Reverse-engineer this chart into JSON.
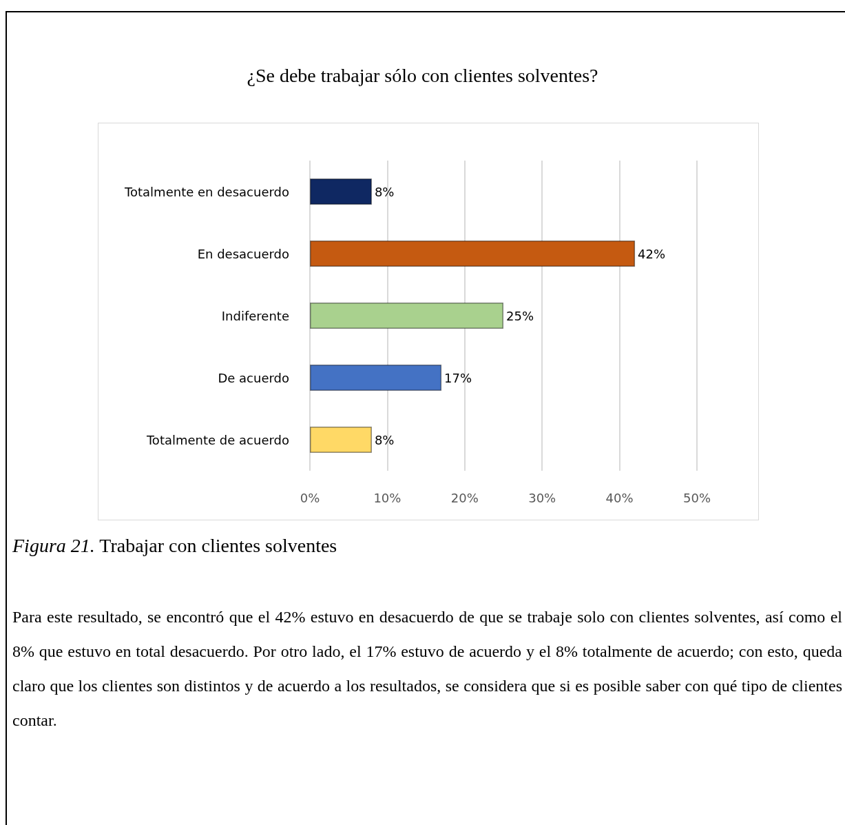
{
  "chart_data": {
    "type": "bar",
    "orientation": "horizontal",
    "title": "¿Se debe trabajar sólo con clientes solventes?",
    "categories": [
      "Totalmente en desacuerdo",
      "En desacuerdo",
      "Indiferente",
      "De acuerdo",
      "Totalmente de acuerdo"
    ],
    "values": [
      8,
      42,
      25,
      17,
      8
    ],
    "colors": [
      "#0f2862",
      "#c55a11",
      "#a9d18e",
      "#4472c4",
      "#ffd966"
    ],
    "value_labels": [
      "8%",
      "42%",
      "25%",
      "17%",
      "8%"
    ],
    "xlim": [
      0,
      50
    ],
    "xticks": [
      {
        "value": 0,
        "label": "0%"
      },
      {
        "value": 10,
        "label": "10%"
      },
      {
        "value": 20,
        "label": "20%"
      },
      {
        "value": 30,
        "label": "30%"
      },
      {
        "value": 40,
        "label": "40%"
      },
      {
        "value": 50,
        "label": "50%"
      }
    ],
    "grid": "x",
    "annotations": [
      "Figura 21. Trabajar con clientes solventes",
      "Para este resultado, se encontró que el 42% estuvo en desacuerdo de que se trabaje solo con clientes solventes, así como el 8% que estuvo en total desacuerdo. Por otro lado, el 17% estuvo de acuerdo y el 8% totalmente de acuerdo; con esto, queda claro que los clientes son distintos y de acuerdo a los resultados, se considera que si es posible saber con qué tipo de clientes contar."
    ]
  }
}
